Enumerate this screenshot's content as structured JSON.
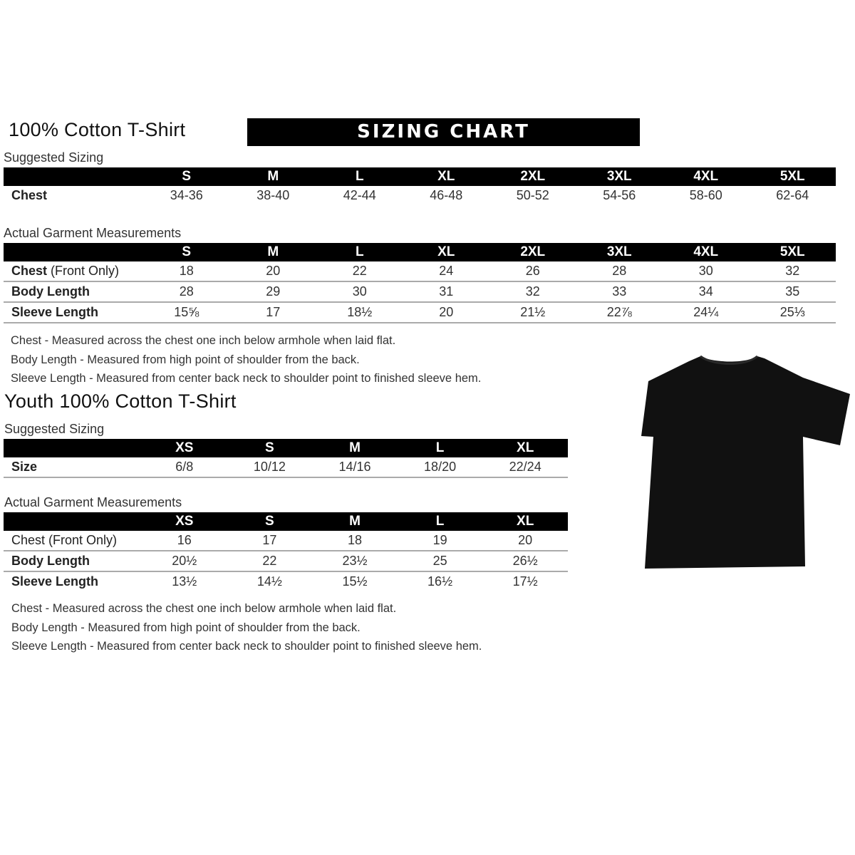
{
  "adult": {
    "title": "100% Cotton T-Shirt",
    "banner": "SIZING CHART",
    "suggested_label": "Suggested Sizing",
    "sizes": [
      "S",
      "M",
      "L",
      "XL",
      "2XL",
      "3XL",
      "4XL",
      "5XL"
    ],
    "chest_label": "Chest",
    "chest": [
      "34-36",
      "38-40",
      "42-44",
      "46-48",
      "50-52",
      "54-56",
      "58-60",
      "62-64"
    ],
    "actual_label": "Actual Garment Measurements",
    "rows": [
      {
        "label": "Chest",
        "label_extra": " (Front Only)",
        "values": [
          "18",
          "20",
          "22",
          "24",
          "26",
          "28",
          "30",
          "32"
        ]
      },
      {
        "label": "Body Length",
        "label_extra": "",
        "values": [
          "28",
          "29",
          "30",
          "31",
          "32",
          "33",
          "34",
          "35"
        ]
      },
      {
        "label": "Sleeve Length",
        "label_extra": "",
        "values": [
          "15⅝",
          "17",
          "18½",
          "20",
          "21½",
          "22⅞",
          "24¼",
          "25⅓"
        ]
      }
    ],
    "notes": [
      "Chest - Measured across the chest one inch below armhole when laid flat.",
      "Body Length - Measured from high point of shoulder from the back.",
      "Sleeve Length - Measured from center back neck to shoulder point to finished sleeve hem."
    ]
  },
  "youth": {
    "title": "Youth 100% Cotton T-Shirt",
    "suggested_label": "Suggested Sizing",
    "sizes": [
      "XS",
      "S",
      "M",
      "L",
      "XL"
    ],
    "size_label": "Size",
    "size_values": [
      "6/8",
      "10/12",
      "14/16",
      "18/20",
      "22/24"
    ],
    "actual_label": "Actual Garment Measurements",
    "rows": [
      {
        "label": "Chest (Front Only)",
        "values": [
          "16",
          "17",
          "18",
          "19",
          "20"
        ]
      },
      {
        "label": "Body Length",
        "values": [
          "20½",
          "22",
          "23½",
          "25",
          "26½"
        ]
      },
      {
        "label": "Sleeve Length",
        "values": [
          "13½",
          "14½",
          "15½",
          "16½",
          "17½"
        ]
      }
    ],
    "notes": [
      "Chest - Measured across the chest one inch below armhole when laid flat.",
      "Body Length - Measured from high point of shoulder from the back.",
      "Sleeve Length - Measured from center back neck to shoulder point to finished sleeve hem."
    ]
  },
  "colors": {
    "header_bg": "#000000",
    "shirt": "#111111"
  }
}
